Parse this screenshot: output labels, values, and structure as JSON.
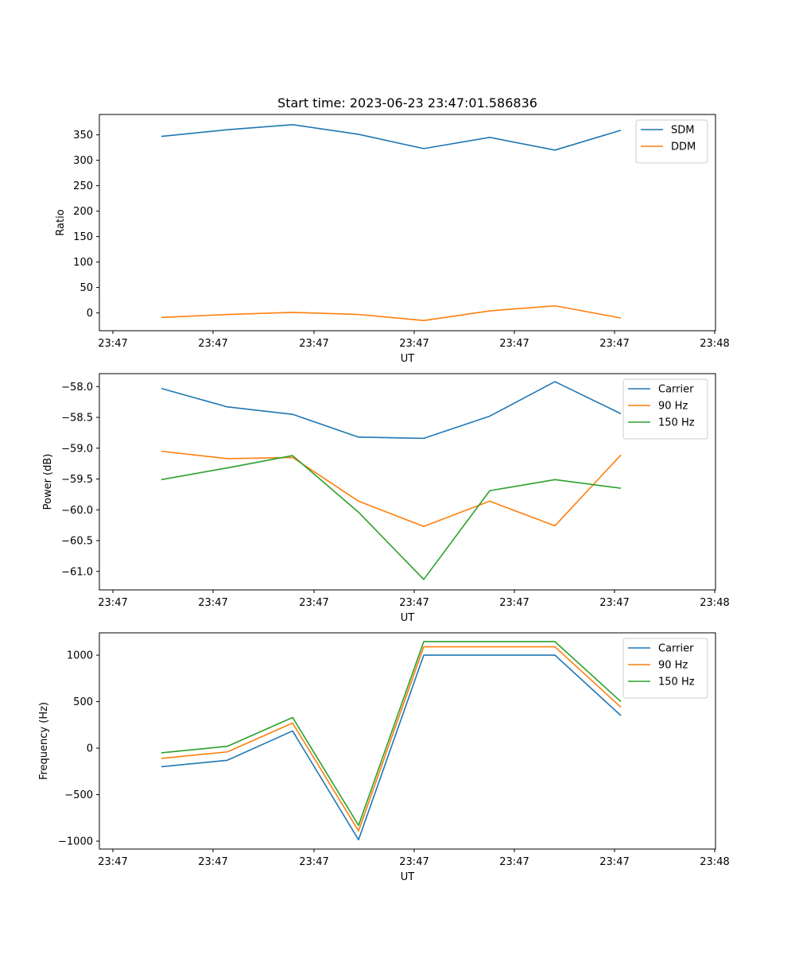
{
  "chart_data": [
    {
      "type": "line",
      "title": "Start time: 2023-06-23 23:47:01.586836",
      "xlabel": "UT",
      "ylabel": "Ratio",
      "x_ticks": [
        "23:47",
        "23:47",
        "23:47",
        "23:47",
        "23:47",
        "23:47",
        "23:48"
      ],
      "ylim": [
        -35,
        390
      ],
      "y_ticks": [
        0,
        50,
        100,
        150,
        200,
        250,
        300,
        350
      ],
      "legend": "top-right",
      "grid": false,
      "series": [
        {
          "name": "SDM",
          "color": "#1f77b4",
          "values": [
            347,
            360,
            370,
            351,
            323,
            345,
            320,
            359
          ]
        },
        {
          "name": "DDM",
          "color": "#ff7f0e",
          "values": [
            -9,
            -3,
            1,
            -3,
            -15,
            4,
            14,
            -10
          ]
        }
      ]
    },
    {
      "type": "line",
      "title": "",
      "xlabel": "UT",
      "ylabel": "Power (dB)",
      "x_ticks": [
        "23:47",
        "23:47",
        "23:47",
        "23:47",
        "23:47",
        "23:47",
        "23:48"
      ],
      "ylim": [
        -61.3,
        -57.79
      ],
      "y_ticks": [
        -58.0,
        -58.5,
        -59.0,
        -59.5,
        -60.0,
        -60.5,
        -61.0
      ],
      "y_tick_labels": [
        "−58.0",
        "−58.5",
        "−59.0",
        "−59.5",
        "−60.0",
        "−60.5",
        "−61.0"
      ],
      "legend": "top-right",
      "grid": false,
      "series": [
        {
          "name": "Carrier",
          "color": "#1f77b4",
          "values": [
            -58.03,
            -58.33,
            -58.45,
            -58.82,
            -58.84,
            -58.48,
            -57.92,
            -58.44
          ]
        },
        {
          "name": "90 Hz",
          "color": "#ff7f0e",
          "values": [
            -59.05,
            -59.17,
            -59.15,
            -59.86,
            -60.27,
            -59.86,
            -60.26,
            -59.11
          ]
        },
        {
          "name": "150 Hz",
          "color": "#2ca02c",
          "values": [
            -59.51,
            -59.32,
            -59.12,
            -60.04,
            -61.13,
            -59.69,
            -59.51,
            -59.65
          ]
        }
      ]
    },
    {
      "type": "line",
      "title": "",
      "xlabel": "UT",
      "ylabel": "Frequency (Hz)",
      "x_ticks": [
        "23:47",
        "23:47",
        "23:47",
        "23:47",
        "23:47",
        "23:47",
        "23:48"
      ],
      "ylim": [
        -1085,
        1240
      ],
      "y_ticks": [
        -1000,
        -500,
        0,
        500,
        1000
      ],
      "y_tick_labels": [
        "−1000",
        "−500",
        "0",
        "500",
        "1000"
      ],
      "legend": "top-right",
      "grid": false,
      "series": [
        {
          "name": "Carrier",
          "color": "#1f77b4",
          "values": [
            -200,
            -130,
            185,
            -985,
            1000,
            1000,
            1000,
            350
          ]
        },
        {
          "name": "90 Hz",
          "color": "#ff7f0e",
          "values": [
            -110,
            -40,
            270,
            -890,
            1090,
            1090,
            1090,
            440
          ]
        },
        {
          "name": "150 Hz",
          "color": "#2ca02c",
          "values": [
            -50,
            20,
            330,
            -830,
            1145,
            1145,
            1145,
            500
          ]
        }
      ]
    }
  ]
}
